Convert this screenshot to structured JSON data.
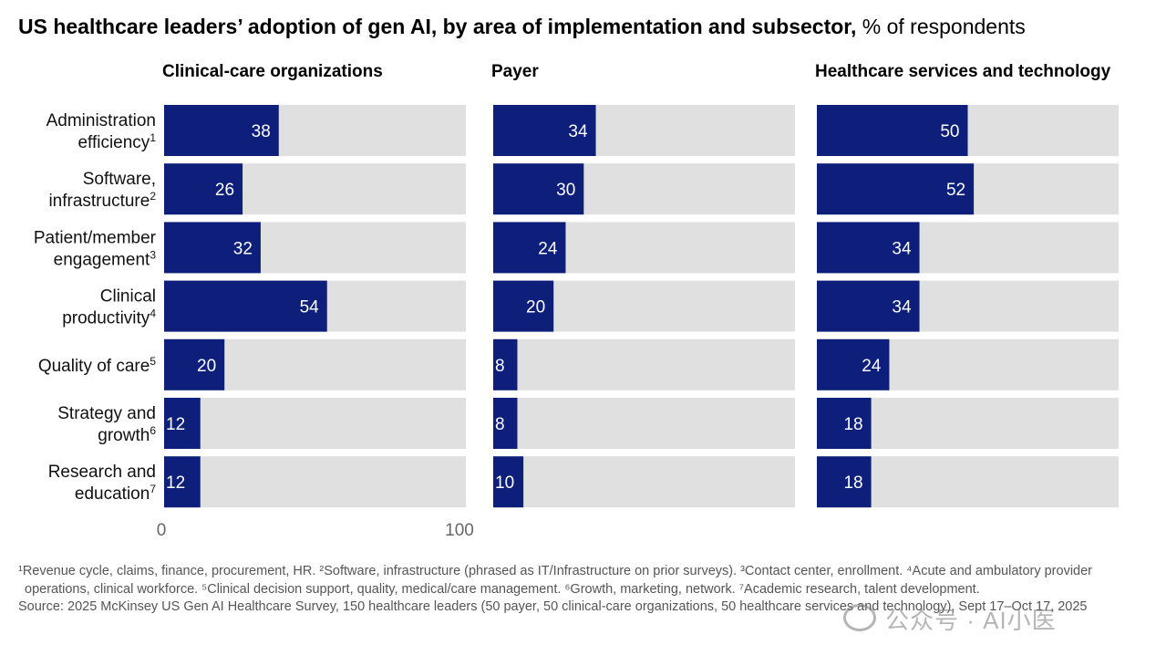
{
  "title": {
    "bold": "US healthcare leaders’ adoption of gen AI, by area of implementation and subsector,",
    "light": "% of respondents"
  },
  "colors": {
    "bar": "#0d1f7a",
    "track": "#e0e0e0",
    "axis_text": "#666666"
  },
  "chart_data": {
    "type": "bar",
    "orientation": "horizontal",
    "xlim": [
      0,
      100
    ],
    "x_ticks": [
      "0",
      "100"
    ],
    "categories": [
      {
        "line1": "Administration",
        "line2": "efficiency",
        "sup": "1"
      },
      {
        "line1": "Software,",
        "line2": "infrastructure",
        "sup": "2"
      },
      {
        "line1": "Patient/member",
        "line2": "engagement",
        "sup": "3"
      },
      {
        "line1": "Clinical",
        "line2": "productivity",
        "sup": "4"
      },
      {
        "line1": "",
        "line2": "Quality of care",
        "sup": "5"
      },
      {
        "line1": "Strategy and",
        "line2": "growth",
        "sup": "6"
      },
      {
        "line1": "Research and",
        "line2": "education",
        "sup": "7"
      }
    ],
    "series": [
      {
        "name": "Clinical-care organizations",
        "values": [
          38,
          26,
          32,
          54,
          20,
          12,
          12
        ]
      },
      {
        "name": "Payer",
        "values": [
          34,
          30,
          24,
          20,
          8,
          8,
          10
        ]
      },
      {
        "name": "Healthcare services and technology",
        "values": [
          50,
          52,
          34,
          34,
          24,
          18,
          18
        ]
      }
    ]
  },
  "footnotes": [
    "¹Revenue cycle, claims, finance, procurement, HR. ²Software, infrastructure (phrased as IT/Infrastructure on prior surveys). ³Contact center, enrollment. ⁴Acute and ambulatory provider operations, clinical workforce. ⁵Clinical decision support, quality, medical/care management. ⁶Growth, marketing, network. ⁷Academic research, talent development.",
    "Source: 2025 McKinsey US Gen AI Healthcare Survey, 150 healthcare leaders (50 payer, 50 clinical-care organizations, 50 healthcare services and technology), Sept 17–Oct 17, 2025"
  ],
  "watermark": "公众号 · AI小医"
}
